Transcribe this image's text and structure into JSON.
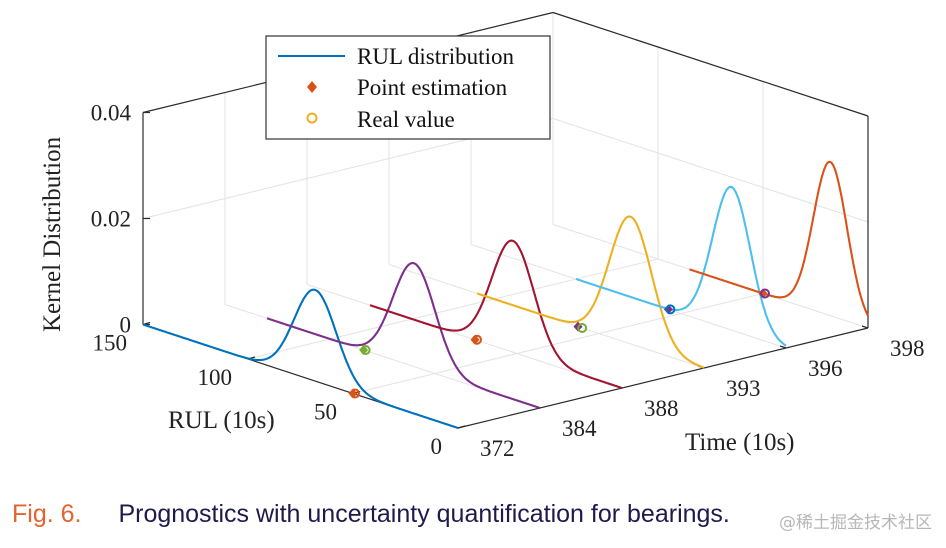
{
  "chart_data": {
    "type": "3d-line",
    "title": "",
    "xlabel": "Time (10s)",
    "ylabel": "RUL (10s)",
    "zlabel": "Kernel Distribution",
    "x_ticks": [
      "372",
      "384",
      "388",
      "393",
      "396",
      "398"
    ],
    "y_ticks": [
      "0",
      "50",
      "100",
      "150"
    ],
    "z_ticks": [
      "0",
      "0.02",
      "0.04"
    ],
    "ylim": [
      0,
      150
    ],
    "zlim": [
      0,
      0.04
    ],
    "grid": true,
    "legend_position": "top-left",
    "legend": [
      {
        "label": "RUL distribution",
        "kind": "line",
        "color": "#0072BD"
      },
      {
        "label": "Point estimation",
        "kind": "diamond",
        "color": "#D95319"
      },
      {
        "label": "Real value",
        "kind": "circle",
        "color": "#EDB120"
      }
    ],
    "series": [
      {
        "name": "372",
        "color": "#0072BD",
        "mean": 68,
        "std": 10,
        "peak": 0.0172,
        "rul_range": [
          0,
          150
        ],
        "point_estimation": 50,
        "point_color": "#D95319",
        "real_value": 50,
        "real_color": "#D95319"
      },
      {
        "name": "384",
        "color": "#7E2F8E",
        "mean": 60,
        "std": 10,
        "peak": 0.0195,
        "rul_range": [
          0,
          130
        ],
        "point_estimation": 84,
        "point_color": "#77AC30",
        "real_value": 84,
        "real_color": "#77AC30"
      },
      {
        "name": "388",
        "color": "#A2142F",
        "mean": 52,
        "std": 10,
        "peak": 0.021,
        "rul_range": [
          0,
          120
        ],
        "point_estimation": 70,
        "point_color": "#D95319",
        "real_value": 70,
        "real_color": "#D95319"
      },
      {
        "name": "393",
        "color": "#EDB120",
        "mean": 35,
        "std": 10,
        "peak": 0.024,
        "rul_range": [
          0,
          108
        ],
        "point_estimation": 60,
        "point_color": "#7E2F8E",
        "real_value": 58,
        "real_color": "#77AC30"
      },
      {
        "name": "396",
        "color": "#4DBEEE",
        "mean": 26,
        "std": 9,
        "peak": 0.027,
        "rul_range": [
          0,
          100
        ],
        "point_estimation": 56,
        "point_color": "#7E2F8E",
        "real_value": 56,
        "real_color": "#0072BD"
      },
      {
        "name": "398",
        "color": "#D95319",
        "mean": 18,
        "std": 8,
        "peak": 0.029,
        "rul_range": [
          0,
          85
        ],
        "point_estimation": 50,
        "point_color": "#D95319",
        "real_value": 50,
        "real_color": "#7E2F8E"
      }
    ]
  },
  "caption": {
    "figure_label": "Fig. 6.",
    "text": "Prognostics with uncertainty quantification for bearings."
  },
  "watermark": "@稀土掘金技术社区"
}
